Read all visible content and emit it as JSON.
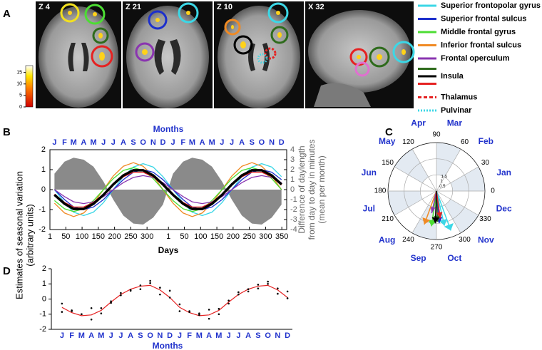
{
  "panel_labels": [
    "A",
    "B",
    "C",
    "D"
  ],
  "slices": [
    "Z 4",
    "Z 21",
    "Z 10",
    "X 32"
  ],
  "colorbar": {
    "lim": [
      0,
      18
    ],
    "ticks": [
      0,
      5,
      10,
      15
    ]
  },
  "legend": [
    {
      "name": "Superior frontopolar gyrus",
      "colors": [
        "#3cd7e6"
      ],
      "dash": "solid"
    },
    {
      "name": "Superior frontal sulcus",
      "colors": [
        "#1c2fcc"
      ],
      "dash": "solid"
    },
    {
      "name": "Middle frontal gyrus",
      "colors": [
        "#4cdd33"
      ],
      "dash": "solid"
    },
    {
      "name": "Inferior frontal sulcus",
      "colors": [
        "#f08a24"
      ],
      "dash": "solid"
    },
    {
      "name": "Frontal operculum",
      "colors": [
        "#8a35b0"
      ],
      "dash": "solid"
    },
    {
      "name": "Insula",
      "colors": [
        "#2e6b1c",
        "#000000",
        "#e52222"
      ],
      "dash": "solid"
    },
    {
      "name": "Thalamus",
      "colors": [
        "#e52222"
      ],
      "dash": "dashed"
    },
    {
      "name": "Pulvinar",
      "colors": [
        "#3cd7e6"
      ],
      "dash": "dotted"
    }
  ],
  "chart_data": [
    {
      "type": "line",
      "x2label": "Months",
      "xlabel": "Days",
      "ylabel": [
        "Estimates of seasonal variation",
        "(arbitrary units)"
      ],
      "y2label": [
        "Difference of daylength",
        "from day to day in minutes",
        "(mean per month)"
      ],
      "month_labels": [
        "J",
        "F",
        "M",
        "A",
        "M",
        "J",
        "J",
        "A",
        "S",
        "O",
        "N",
        "D",
        "J",
        "F",
        "M",
        "A",
        "M",
        "J",
        "J",
        "A",
        "S",
        "O",
        "N",
        "D"
      ],
      "x": [
        15,
        46,
        74,
        105,
        135,
        166,
        196,
        227,
        258,
        288,
        319,
        349,
        380,
        411,
        439,
        470,
        500,
        531,
        561,
        592,
        623,
        653,
        684,
        714
      ],
      "xlim": [
        1,
        730
      ],
      "xticks": [
        1,
        50,
        100,
        150,
        200,
        250,
        300,
        {
          "value": 366,
          "label": "1"
        },
        {
          "value": 415,
          "label": "50"
        },
        {
          "value": 465,
          "label": "100"
        },
        {
          "value": 515,
          "label": "150"
        },
        {
          "value": 565,
          "label": "200"
        },
        {
          "value": 615,
          "label": "250"
        },
        {
          "value": 665,
          "label": "300"
        },
        {
          "value": 715,
          "label": "350"
        }
      ],
      "ylim": [
        -2,
        2
      ],
      "yticks": [
        -2,
        -1,
        0,
        1,
        2
      ],
      "y2lim": [
        -4,
        4
      ],
      "y2ticks": [
        -4,
        -3,
        -2,
        -1,
        0,
        1,
        2,
        3,
        4
      ],
      "series": [
        {
          "type": "area",
          "axis": "y2",
          "color": "#8a8a8a",
          "values": [
            1.6,
            2.8,
            3.2,
            3.0,
            2.3,
            0.8,
            -1.0,
            -2.6,
            -3.4,
            -3.5,
            -2.8,
            -1.5,
            1.6,
            2.8,
            3.2,
            3.0,
            2.3,
            0.8,
            -1.0,
            -2.6,
            -3.4,
            -3.5,
            -2.8,
            -1.5
          ]
        },
        {
          "color": "#3cd7e6",
          "width": 1.3,
          "values": [
            0,
            -0.65,
            -1.13,
            -1.3,
            -1.13,
            -0.65,
            0,
            0.65,
            1.13,
            1.3,
            1.13,
            0.65,
            0,
            -0.65,
            -1.13,
            -1.3,
            -1.13,
            -0.65,
            0,
            0.65,
            1.13,
            1.3,
            1.13,
            0.65
          ]
        },
        {
          "color": "#f08a24",
          "width": 1.3,
          "values": [
            -0.68,
            -1.17,
            -1.35,
            -1.17,
            -0.68,
            0,
            0.68,
            1.17,
            1.35,
            1.17,
            0.68,
            0,
            -0.68,
            -1.17,
            -1.35,
            -1.17,
            -0.68,
            0,
            0.68,
            1.17,
            1.35,
            1.17,
            0.68,
            0
          ]
        },
        {
          "color": "#4cdd33",
          "width": 1.3,
          "values": [
            -0.55,
            -0.96,
            -1.1,
            -0.96,
            -0.55,
            0,
            0.55,
            0.96,
            1.1,
            0.96,
            0.55,
            0,
            -0.55,
            -0.96,
            -1.1,
            -0.96,
            -0.55,
            0,
            0.55,
            0.96,
            1.1,
            0.96,
            0.55,
            0
          ]
        },
        {
          "color": "#1c2fcc",
          "width": 1.3,
          "values": [
            0,
            -0.5,
            -0.87,
            -1,
            -0.87,
            -0.5,
            0,
            0.5,
            0.87,
            1,
            0.87,
            0.5,
            0,
            -0.5,
            -0.87,
            -1,
            -0.87,
            -0.5,
            0,
            0.5,
            0.87,
            1,
            0.87,
            0.5
          ]
        },
        {
          "color": "#8a35b0",
          "width": 1.3,
          "values": [
            0,
            -0.35,
            -0.61,
            -0.7,
            -0.61,
            -0.35,
            0,
            0.35,
            0.61,
            0.7,
            0.61,
            0.35,
            0,
            -0.35,
            -0.61,
            -0.7,
            -0.61,
            -0.35,
            0,
            0.35,
            0.61,
            0.7,
            0.61,
            0.35
          ]
        },
        {
          "color": "#e52222",
          "width": 1.3,
          "values": [
            -0.23,
            -0.64,
            -0.87,
            -0.87,
            -0.64,
            -0.23,
            0.23,
            0.64,
            0.87,
            0.87,
            0.64,
            0.23,
            -0.23,
            -0.64,
            -0.87,
            -0.87,
            -0.64,
            -0.23,
            0.23,
            0.64,
            0.87,
            0.87,
            0.64,
            0.23
          ]
        },
        {
          "color": "#000000",
          "width": 3.5,
          "values": [
            -0.26,
            -0.71,
            -0.97,
            -0.97,
            -0.71,
            -0.26,
            0.26,
            0.71,
            0.97,
            0.97,
            0.71,
            0.26,
            -0.26,
            -0.71,
            -0.97,
            -0.97,
            -0.71,
            -0.26,
            0.26,
            0.71,
            0.97,
            0.97,
            0.71,
            0.26
          ]
        }
      ]
    },
    {
      "type": "polar",
      "thetaticks": [
        0,
        30,
        60,
        90,
        120,
        150,
        180,
        210,
        240,
        270,
        300,
        330
      ],
      "rlim": [
        0,
        1.5
      ],
      "rticks": [
        0.5,
        1,
        1.5
      ],
      "month_labels": [
        "Jan",
        "Feb",
        "Mar",
        "Apr",
        "May",
        "Jun",
        "Jul",
        "Aug",
        "Sep",
        "Oct",
        "Nov",
        "Dec"
      ],
      "arrows": [
        {
          "color": "#3cd7e6",
          "angle": 290,
          "r": 1.3
        },
        {
          "color": "#3cd7e6",
          "angle": 283,
          "r": 1.1
        },
        {
          "color": "#1c2fcc",
          "angle": 275,
          "r": 1.0
        },
        {
          "color": "#4cdd33",
          "angle": 262,
          "r": 1.1
        },
        {
          "color": "#f08a24",
          "angle": 250,
          "r": 1.1
        },
        {
          "color": "#8a35b0",
          "angle": 258,
          "r": 0.7
        },
        {
          "color": "#2e6b1c",
          "angle": 272,
          "r": 0.95
        },
        {
          "color": "#e52222",
          "angle": 278,
          "r": 0.85
        },
        {
          "color": "#000000",
          "angle": 268,
          "r": 1.0
        }
      ]
    },
    {
      "type": "line",
      "xlabel": "Months",
      "categories": [
        "J",
        "F",
        "M",
        "A",
        "M",
        "J",
        "J",
        "A",
        "S",
        "O",
        "N",
        "D",
        "J",
        "F",
        "M",
        "A",
        "M",
        "J",
        "J",
        "A",
        "S",
        "O",
        "N",
        "D"
      ],
      "ylim": [
        -2,
        2
      ],
      "yticks": [
        -2,
        -1,
        0,
        1,
        2
      ],
      "series": [
        {
          "color": "#e52222",
          "style": "line",
          "values": [
            -0.55,
            -0.9,
            -1.1,
            -1.05,
            -0.75,
            -0.2,
            0.3,
            0.65,
            0.85,
            0.9,
            0.6,
            0.1,
            -0.55,
            -0.9,
            -1.1,
            -1.05,
            -0.75,
            -0.2,
            0.3,
            0.65,
            0.85,
            0.9,
            0.6,
            0.1
          ]
        },
        {
          "color": "#000000",
          "style": "dots",
          "values": [
            -0.3,
            -0.75,
            -1.0,
            -0.6,
            -0.6,
            -0.15,
            0.4,
            0.6,
            0.9,
            1.2,
            0.75,
            0.55,
            -0.35,
            -0.8,
            -0.95,
            -0.7,
            -0.65,
            -0.1,
            0.45,
            0.65,
            0.95,
            1.15,
            0.7,
            0.5
          ]
        },
        {
          "color": "#000000",
          "style": "dots",
          "values": [
            -0.85,
            -0.8,
            -1.0,
            -1.35,
            -0.95,
            -0.25,
            0.25,
            0.55,
            0.65,
            1.05,
            0.3,
            0.1,
            -0.8,
            -0.85,
            -1.05,
            -1.3,
            -1.0,
            -0.3,
            0.3,
            0.5,
            0.7,
            1.0,
            0.35,
            0.05
          ]
        }
      ]
    }
  ]
}
